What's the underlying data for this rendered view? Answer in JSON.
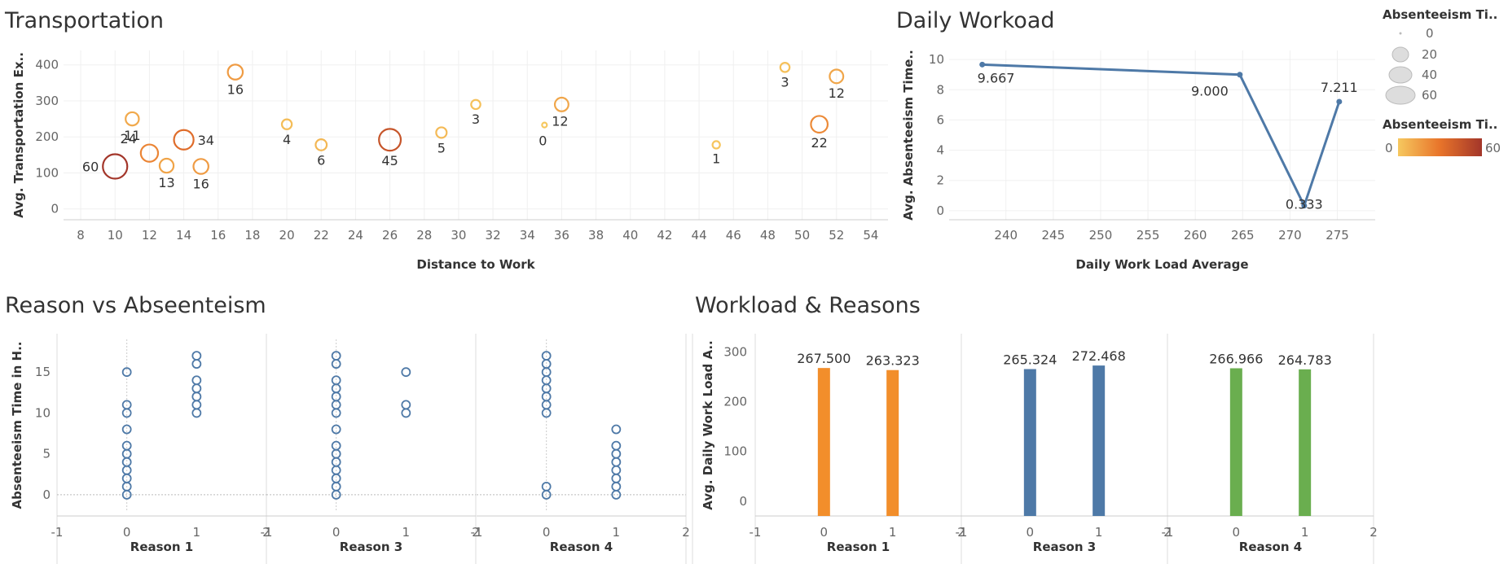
{
  "dashboard": {
    "transport_title": "Transportation",
    "workload_title": "Daily Workoad",
    "reason_title": "Reason vs Abseenteism",
    "wr_title": "Workload & Reasons"
  },
  "legend": {
    "size_title": "Absenteeism Ti..",
    "size_values": [
      "0",
      "20",
      "40",
      "60"
    ],
    "color_title": "Absenteeism Ti..",
    "color_min": "0",
    "color_max": "60",
    "color_low": "#f6c85f",
    "color_mid": "#e8742a",
    "color_high": "#a3362a"
  },
  "chart_data": [
    {
      "type": "scatter",
      "name": "transportation",
      "xlabel": "Distance to Work",
      "ylabel": "Avg. Transportation Ex..",
      "xlim": [
        7,
        55
      ],
      "ylim": [
        -30,
        440
      ],
      "xticks": [
        8,
        10,
        12,
        14,
        16,
        18,
        20,
        22,
        24,
        26,
        28,
        30,
        32,
        34,
        36,
        38,
        40,
        42,
        44,
        46,
        48,
        50,
        52,
        54
      ],
      "yticks": [
        0,
        100,
        200,
        300,
        400
      ],
      "grid": true,
      "points": [
        {
          "x": 10,
          "y": 118,
          "label": "60"
        },
        {
          "x": 11,
          "y": 250,
          "label": "11"
        },
        {
          "x": 12,
          "y": 155,
          "label": "24"
        },
        {
          "x": 13,
          "y": 120,
          "label": "13"
        },
        {
          "x": 14,
          "y": 192,
          "label": "34"
        },
        {
          "x": 15,
          "y": 118,
          "label": "16"
        },
        {
          "x": 17,
          "y": 380,
          "label": "16"
        },
        {
          "x": 20,
          "y": 235,
          "label": "4"
        },
        {
          "x": 22,
          "y": 178,
          "label": "6"
        },
        {
          "x": 26,
          "y": 192,
          "label": "45"
        },
        {
          "x": 29,
          "y": 212,
          "label": "5"
        },
        {
          "x": 31,
          "y": 290,
          "label": "3"
        },
        {
          "x": 35,
          "y": 233,
          "label": "0"
        },
        {
          "x": 36,
          "y": 290,
          "label": "12"
        },
        {
          "x": 45,
          "y": 178,
          "label": "1"
        },
        {
          "x": 49,
          "y": 393,
          "label": "3"
        },
        {
          "x": 51,
          "y": 235,
          "label": "22"
        },
        {
          "x": 52,
          "y": 368,
          "label": "12"
        }
      ]
    },
    {
      "type": "line",
      "name": "daily-workload",
      "xlabel": "Daily Work Load Average",
      "ylabel": "Avg. Absenteeism Time..",
      "xlim": [
        234,
        279
      ],
      "ylim": [
        -0.6,
        10.6
      ],
      "xticks": [
        240,
        245,
        250,
        255,
        260,
        265,
        270,
        275
      ],
      "yticks": [
        0,
        2,
        4,
        6,
        8,
        10
      ],
      "grid": true,
      "points": [
        {
          "x": 237.5,
          "y": 9.667,
          "label": "9.667"
        },
        {
          "x": 264.7,
          "y": 9.0,
          "label": "9.000"
        },
        {
          "x": 271.5,
          "y": 0.333,
          "label": "0.333"
        },
        {
          "x": 275.2,
          "y": 7.211,
          "label": "7.211"
        }
      ],
      "color": "#4e79a7"
    },
    {
      "type": "scatter",
      "name": "reason-vs-absenteeism",
      "ylabel": "Absenteeism Time in H..",
      "ylim": [
        -2,
        19
      ],
      "yticks": [
        0,
        5,
        10,
        15
      ],
      "xticks": [
        -1,
        0,
        1,
        2
      ],
      "color": "#4e79a7",
      "panels": [
        {
          "xlabel": "Reason 1",
          "points": [
            {
              "x": 0,
              "y": 0
            },
            {
              "x": 0,
              "y": 1
            },
            {
              "x": 0,
              "y": 2
            },
            {
              "x": 0,
              "y": 3
            },
            {
              "x": 0,
              "y": 4
            },
            {
              "x": 0,
              "y": 5
            },
            {
              "x": 0,
              "y": 6
            },
            {
              "x": 0,
              "y": 8
            },
            {
              "x": 0,
              "y": 10
            },
            {
              "x": 0,
              "y": 11
            },
            {
              "x": 0,
              "y": 15
            },
            {
              "x": 1,
              "y": 10
            },
            {
              "x": 1,
              "y": 11
            },
            {
              "x": 1,
              "y": 12
            },
            {
              "x": 1,
              "y": 13
            },
            {
              "x": 1,
              "y": 14
            },
            {
              "x": 1,
              "y": 16
            },
            {
              "x": 1,
              "y": 17
            }
          ]
        },
        {
          "xlabel": "Reason 3",
          "points": [
            {
              "x": 0,
              "y": 0
            },
            {
              "x": 0,
              "y": 1
            },
            {
              "x": 0,
              "y": 2
            },
            {
              "x": 0,
              "y": 3
            },
            {
              "x": 0,
              "y": 4
            },
            {
              "x": 0,
              "y": 5
            },
            {
              "x": 0,
              "y": 6
            },
            {
              "x": 0,
              "y": 8
            },
            {
              "x": 0,
              "y": 10
            },
            {
              "x": 0,
              "y": 11
            },
            {
              "x": 0,
              "y": 12
            },
            {
              "x": 0,
              "y": 13
            },
            {
              "x": 0,
              "y": 14
            },
            {
              "x": 0,
              "y": 16
            },
            {
              "x": 0,
              "y": 17
            },
            {
              "x": 1,
              "y": 10
            },
            {
              "x": 1,
              "y": 11
            },
            {
              "x": 1,
              "y": 15
            }
          ]
        },
        {
          "xlabel": "Reason 4",
          "points": [
            {
              "x": 0,
              "y": 0
            },
            {
              "x": 0,
              "y": 1
            },
            {
              "x": 0,
              "y": 10
            },
            {
              "x": 0,
              "y": 11
            },
            {
              "x": 0,
              "y": 12
            },
            {
              "x": 0,
              "y": 13
            },
            {
              "x": 0,
              "y": 14
            },
            {
              "x": 0,
              "y": 15
            },
            {
              "x": 0,
              "y": 16
            },
            {
              "x": 0,
              "y": 17
            },
            {
              "x": 1,
              "y": 0
            },
            {
              "x": 1,
              "y": 1
            },
            {
              "x": 1,
              "y": 2
            },
            {
              "x": 1,
              "y": 3
            },
            {
              "x": 1,
              "y": 4
            },
            {
              "x": 1,
              "y": 5
            },
            {
              "x": 1,
              "y": 6
            },
            {
              "x": 1,
              "y": 8
            }
          ]
        }
      ]
    },
    {
      "type": "bar",
      "name": "workload-reasons",
      "ylabel": "Avg. Daily Work Load A..",
      "ylim": [
        -20,
        325
      ],
      "yticks": [
        0,
        100,
        200,
        300
      ],
      "xticks": [
        -1,
        0,
        1,
        2
      ],
      "panels": [
        {
          "xlabel": "Reason 1",
          "color": "#f28e2b",
          "bars": [
            {
              "x": 0,
              "value": 267.5,
              "label": "267.500"
            },
            {
              "x": 1,
              "value": 263.323,
              "label": "263.323"
            }
          ]
        },
        {
          "xlabel": "Reason 3",
          "color": "#4e79a7",
          "bars": [
            {
              "x": 0,
              "value": 265.324,
              "label": "265.324"
            },
            {
              "x": 1,
              "value": 272.468,
              "label": "272.468"
            }
          ]
        },
        {
          "xlabel": "Reason 4",
          "color": "#6aae4f",
          "bars": [
            {
              "x": 0,
              "value": 266.966,
              "label": "266.966"
            },
            {
              "x": 1,
              "value": 264.783,
              "label": "264.783"
            }
          ]
        }
      ]
    }
  ]
}
